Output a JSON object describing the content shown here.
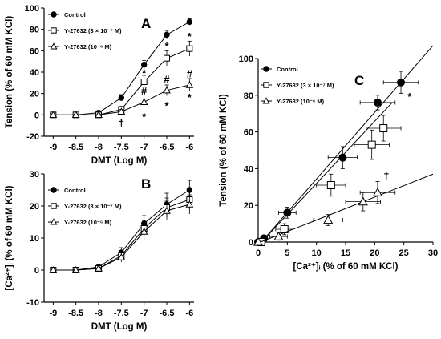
{
  "chart_data": [
    {
      "type": "line",
      "panel": "A",
      "xlabel": "DMT (Log M)",
      "ylabel": "Tension (% of 60 mM KCl)",
      "xlim": [
        -9.2,
        -5.9
      ],
      "ylim": [
        -20,
        100
      ],
      "xticks": [
        "-9",
        "-8.5",
        "-8",
        "-7.5",
        "-7",
        "-6.5",
        "-6"
      ],
      "yticks": [
        "-20",
        "0",
        "20",
        "40",
        "60",
        "80",
        "100"
      ],
      "x": [
        -9,
        -8.5,
        -8,
        -7.5,
        -7,
        -6.5,
        -6
      ],
      "legend_position": "top-left",
      "series": [
        {
          "name": "Control",
          "marker": "filled-circle",
          "values": [
            0,
            0,
            2,
            16,
            47,
            75,
            87
          ],
          "errors": [
            1,
            1,
            2,
            3,
            4,
            4,
            3
          ]
        },
        {
          "name": "Y-27632 (3 × 10⁻⁷ M)",
          "marker": "open-square",
          "values": [
            0,
            0,
            0,
            5,
            31,
            53,
            62
          ],
          "errors": [
            1,
            1,
            1,
            3,
            6,
            7,
            7
          ]
        },
        {
          "name": "Y-27632 (10⁻⁶ M)",
          "marker": "open-triangle",
          "values": [
            0,
            0,
            0,
            3,
            12,
            23,
            28
          ],
          "errors": [
            1,
            1,
            1,
            2,
            3,
            5,
            6
          ]
        }
      ],
      "annotations": [
        {
          "text": "*",
          "x": -7,
          "y": 39
        },
        {
          "text": "*",
          "x": -6.5,
          "y": 64
        },
        {
          "text": "*",
          "x": -6,
          "y": 73
        },
        {
          "text": "#",
          "x": -7,
          "y": 22
        },
        {
          "text": "#",
          "x": -6.5,
          "y": 33
        },
        {
          "text": "#",
          "x": -6,
          "y": 38
        },
        {
          "text": "*",
          "x": -7,
          "y": -2
        },
        {
          "text": "*",
          "x": -6.5,
          "y": 8
        },
        {
          "text": "*",
          "x": -6,
          "y": 16
        },
        {
          "text": "†",
          "x": -7.5,
          "y": -8
        }
      ]
    },
    {
      "type": "line",
      "panel": "B",
      "xlabel": "DMT (Log M)",
      "ylabel": "[Ca²⁺]ᵢ (% of 60 mM KCl)",
      "xlim": [
        -9.2,
        -5.9
      ],
      "ylim": [
        -10,
        30
      ],
      "xticks": [
        "-9",
        "-8.5",
        "-8",
        "-7.5",
        "-7",
        "-6.5",
        "-6"
      ],
      "yticks": [
        "-10",
        "0",
        "10",
        "20",
        "30"
      ],
      "x": [
        -9,
        -8.5,
        -8,
        -7.5,
        -7,
        -6.5,
        -6
      ],
      "legend_position": "top-left",
      "series": [
        {
          "name": "Control",
          "marker": "filled-circle",
          "values": [
            0,
            0,
            1,
            5.5,
            14.5,
            20.5,
            25
          ],
          "errors": [
            0.3,
            0.3,
            0.8,
            1.5,
            2.5,
            3.5,
            3
          ]
        },
        {
          "name": "Y-27632 (3 × 10⁻⁷ M)",
          "marker": "open-square",
          "values": [
            0,
            0,
            0.5,
            4.5,
            13,
            19.5,
            22
          ],
          "errors": [
            0.3,
            0.3,
            0.8,
            1.5,
            2.5,
            3,
            3
          ]
        },
        {
          "name": "Y-27632 (10⁻⁶ M)",
          "marker": "open-triangle",
          "values": [
            0,
            0,
            0.5,
            4,
            12,
            18.5,
            20.5
          ],
          "errors": [
            0.3,
            0.3,
            0.8,
            1.5,
            2.5,
            3,
            3
          ]
        }
      ]
    },
    {
      "type": "scatter",
      "panel": "C",
      "xlabel": "[Ca²⁺]ᵢ (% of 60 mM KCl)",
      "ylabel": "Tension (% of 60 mM KCl)",
      "xlim": [
        0,
        30
      ],
      "ylim": [
        0,
        100
      ],
      "xticks": [
        "0",
        "5",
        "10",
        "15",
        "20",
        "25",
        "30"
      ],
      "yticks": [
        "0",
        "20",
        "40",
        "60",
        "80",
        "100"
      ],
      "legend_position": "top-left",
      "series": [
        {
          "name": "Control",
          "marker": "filled-circle",
          "x": [
            0,
            1,
            5,
            14.5,
            20.5,
            24.5
          ],
          "y": [
            0,
            2,
            16,
            46,
            76,
            87
          ],
          "xerr": [
            0.3,
            0.5,
            1.5,
            2.5,
            3,
            3
          ],
          "yerr": [
            1,
            1.5,
            3,
            6,
            4,
            6
          ],
          "fit": {
            "x": [
              0,
              30
            ],
            "y": [
              -2,
              107
            ]
          }
        },
        {
          "name": "Y-27632 (3 × 10⁻⁷ M)",
          "marker": "open-square",
          "x": [
            0.5,
            4.5,
            12.5,
            19.5,
            21.5
          ],
          "y": [
            0,
            7,
            31,
            53,
            62
          ],
          "xerr": [
            0.5,
            1.5,
            2.5,
            3,
            3
          ],
          "yerr": [
            1,
            3,
            6,
            8,
            7
          ],
          "fit": {
            "x": [
              0,
              23
            ],
            "y": [
              -2,
              76
            ]
          }
        },
        {
          "name": "Y-27632 (10⁻⁶ M)",
          "marker": "open-triangle",
          "x": [
            0,
            3.5,
            12,
            18,
            20.5
          ],
          "y": [
            0,
            3,
            12,
            22,
            27
          ],
          "xerr": [
            0.3,
            1.5,
            2.5,
            3,
            3
          ],
          "yerr": [
            1,
            2,
            3,
            5,
            6
          ],
          "fit": {
            "x": [
              0,
              30
            ],
            "y": [
              -0.5,
              37
            ]
          }
        }
      ],
      "annotations": [
        {
          "text": "*",
          "x": 26,
          "y": 79
        },
        {
          "text": "†",
          "x": 22,
          "y": 36
        }
      ]
    }
  ]
}
